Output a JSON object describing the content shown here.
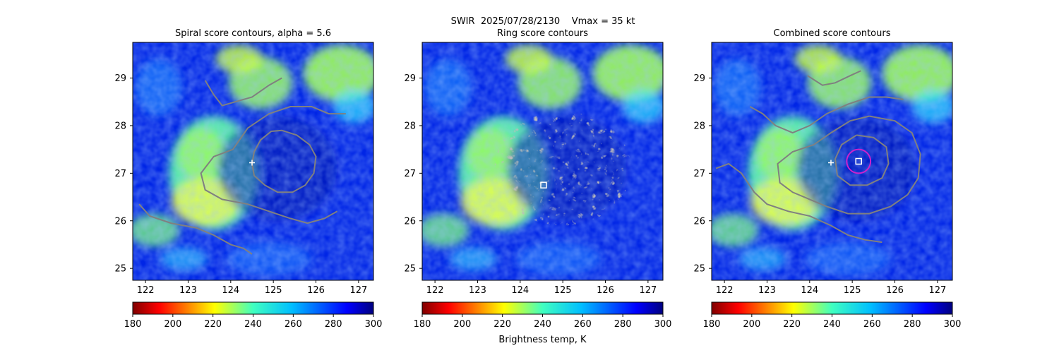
{
  "figure": {
    "suptitle": "SWIR  2025/07/28/2130    Vmax = 35 kt",
    "colorbar_label": "Brightness temp, K"
  },
  "colors": {
    "contour": "#808080",
    "center_circle": "#cc22cc",
    "marker": "#ffffff"
  },
  "chart_data": [
    {
      "type": "heatmap",
      "title": "Spiral score contours, alpha =  5.6",
      "xlim": [
        121.7,
        127.35
      ],
      "ylim": [
        24.75,
        29.75
      ],
      "xticks": [
        122,
        123,
        124,
        125,
        126,
        127
      ],
      "yticks": [
        25,
        26,
        27,
        28,
        29
      ],
      "colormap": "jet_r",
      "colorbar": {
        "min": 180,
        "max": 300,
        "ticks": [
          180,
          200,
          220,
          240,
          260,
          280,
          300
        ]
      },
      "markers": [
        {
          "type": "plus",
          "x": 124.5,
          "y": 27.22
        }
      ],
      "contour_lines": [
        [
          [
            121.85,
            26.35
          ],
          [
            122.1,
            26.1
          ],
          [
            122.6,
            25.95
          ],
          [
            123.2,
            25.85
          ],
          [
            123.6,
            25.7
          ],
          [
            124.0,
            25.5
          ],
          [
            124.3,
            25.42
          ],
          [
            124.5,
            25.3
          ]
        ],
        [
          [
            123.4,
            28.95
          ],
          [
            123.6,
            28.65
          ],
          [
            123.8,
            28.42
          ],
          [
            124.1,
            28.5
          ],
          [
            124.5,
            28.6
          ],
          [
            124.9,
            28.85
          ],
          [
            125.2,
            29.0
          ]
        ],
        [
          [
            126.7,
            28.25
          ],
          [
            126.3,
            28.25
          ],
          [
            125.9,
            28.4
          ],
          [
            125.4,
            28.4
          ],
          [
            124.9,
            28.25
          ],
          [
            124.4,
            27.95
          ],
          [
            124.05,
            27.5
          ],
          [
            123.6,
            27.35
          ],
          [
            123.3,
            27.0
          ],
          [
            123.4,
            26.65
          ],
          [
            123.8,
            26.45
          ],
          [
            124.4,
            26.35
          ],
          [
            124.9,
            26.2
          ],
          [
            125.4,
            26.05
          ],
          [
            125.8,
            25.95
          ],
          [
            126.2,
            26.05
          ],
          [
            126.5,
            26.2
          ]
        ],
        [
          [
            125.2,
            27.9
          ],
          [
            125.55,
            27.8
          ],
          [
            125.85,
            27.6
          ],
          [
            126.0,
            27.35
          ],
          [
            125.95,
            27.0
          ],
          [
            125.75,
            26.75
          ],
          [
            125.45,
            26.6
          ],
          [
            125.1,
            26.6
          ],
          [
            124.8,
            26.75
          ],
          [
            124.55,
            26.95
          ],
          [
            124.5,
            27.2
          ],
          [
            124.55,
            27.45
          ],
          [
            124.7,
            27.7
          ],
          [
            124.95,
            27.88
          ],
          [
            125.2,
            27.9
          ]
        ]
      ]
    },
    {
      "type": "heatmap",
      "title": "Ring score contours",
      "xlim": [
        121.7,
        127.35
      ],
      "ylim": [
        24.75,
        29.75
      ],
      "xticks": [
        122,
        123,
        124,
        125,
        126,
        127
      ],
      "yticks": [
        25,
        26,
        27,
        28,
        29
      ],
      "colormap": "jet_r",
      "colorbar": {
        "min": 180,
        "max": 300,
        "ticks": [
          180,
          200,
          220,
          240,
          260,
          280,
          300
        ]
      },
      "markers": [
        {
          "type": "square",
          "x": 124.55,
          "y": 26.75
        }
      ],
      "ring_region": {
        "cx": 125.0,
        "cy": 27.1,
        "rx": 1.6,
        "ry": 1.2
      }
    },
    {
      "type": "heatmap",
      "title": "Combined score contours",
      "xlim": [
        121.7,
        127.35
      ],
      "ylim": [
        24.75,
        29.75
      ],
      "xticks": [
        122,
        123,
        124,
        125,
        126,
        127
      ],
      "yticks": [
        25,
        26,
        27,
        28,
        29
      ],
      "colormap": "jet_r",
      "colorbar": {
        "min": 180,
        "max": 300,
        "ticks": [
          180,
          200,
          220,
          240,
          260,
          280,
          300
        ]
      },
      "markers": [
        {
          "type": "plus",
          "x": 124.5,
          "y": 27.22
        },
        {
          "type": "square",
          "x": 125.15,
          "y": 27.25
        }
      ],
      "center_circle": {
        "x": 125.15,
        "y": 27.25,
        "r": 0.28
      },
      "contour_lines": [
        [
          [
            123.95,
            29.05
          ],
          [
            124.3,
            28.85
          ],
          [
            124.6,
            28.9
          ],
          [
            124.95,
            29.05
          ],
          [
            125.2,
            29.15
          ]
        ],
        [
          [
            122.6,
            28.4
          ],
          [
            122.9,
            28.25
          ],
          [
            123.2,
            28.0
          ],
          [
            123.6,
            27.85
          ],
          [
            124.0,
            28.0
          ],
          [
            124.4,
            28.25
          ],
          [
            124.9,
            28.45
          ],
          [
            125.4,
            28.6
          ],
          [
            125.8,
            28.6
          ],
          [
            126.2,
            28.55
          ]
        ],
        [
          [
            125.4,
            28.2
          ],
          [
            126.0,
            28.1
          ],
          [
            126.4,
            27.85
          ],
          [
            126.6,
            27.4
          ],
          [
            126.55,
            26.9
          ],
          [
            126.3,
            26.55
          ],
          [
            125.9,
            26.3
          ],
          [
            125.4,
            26.15
          ],
          [
            124.9,
            26.15
          ],
          [
            124.4,
            26.3
          ],
          [
            124.0,
            26.45
          ],
          [
            123.6,
            26.6
          ],
          [
            123.3,
            26.8
          ],
          [
            123.25,
            27.2
          ],
          [
            123.6,
            27.45
          ],
          [
            124.1,
            27.6
          ],
          [
            124.5,
            27.85
          ],
          [
            124.95,
            28.1
          ],
          [
            125.4,
            28.2
          ]
        ],
        [
          [
            125.1,
            27.8
          ],
          [
            125.5,
            27.75
          ],
          [
            125.8,
            27.55
          ],
          [
            125.85,
            27.2
          ],
          [
            125.7,
            26.9
          ],
          [
            125.35,
            26.75
          ],
          [
            124.95,
            26.75
          ],
          [
            124.65,
            26.95
          ],
          [
            124.6,
            27.3
          ],
          [
            124.75,
            27.6
          ],
          [
            125.1,
            27.8
          ]
        ],
        [
          [
            121.8,
            27.1
          ],
          [
            122.1,
            27.2
          ],
          [
            122.4,
            27.0
          ],
          [
            122.7,
            26.6
          ],
          [
            123.0,
            26.35
          ],
          [
            123.5,
            26.2
          ],
          [
            124.0,
            26.1
          ],
          [
            124.5,
            25.9
          ],
          [
            124.9,
            25.7
          ],
          [
            125.3,
            25.6
          ],
          [
            125.7,
            25.55
          ]
        ]
      ]
    }
  ]
}
